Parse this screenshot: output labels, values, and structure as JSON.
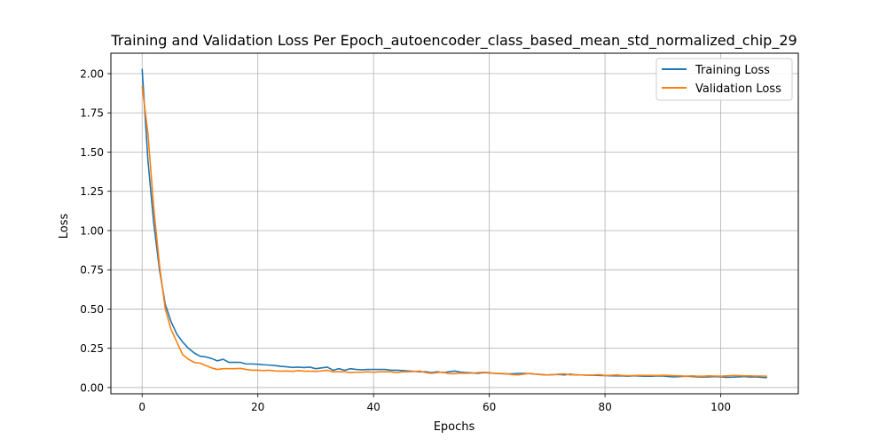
{
  "chart_data": {
    "type": "line",
    "title": "Training and Validation Loss Per Epoch_autoencoder_class_based_mean_std_normalized_chip_29",
    "xlabel": "Epochs",
    "ylabel": "Loss",
    "xlim": [
      -5.4,
      113.4
    ],
    "ylim": [
      -0.04,
      2.13
    ],
    "x_ticks": [
      0,
      20,
      40,
      60,
      80,
      100
    ],
    "y_ticks": [
      0.0,
      0.25,
      0.5,
      0.75,
      1.0,
      1.25,
      1.5,
      1.75,
      2.0
    ],
    "y_tick_labels": [
      "0.00",
      "0.25",
      "0.50",
      "0.75",
      "1.00",
      "1.25",
      "1.50",
      "1.75",
      "2.00"
    ],
    "grid": true,
    "legend_position": "upper right",
    "series": [
      {
        "name": "Training Loss",
        "color": "#1f77b4",
        "values": [
          2.03,
          1.45,
          1.05,
          0.75,
          0.53,
          0.42,
          0.34,
          0.29,
          0.25,
          0.22,
          0.2,
          0.195,
          0.185,
          0.17,
          0.18,
          0.16,
          0.16,
          0.16,
          0.15,
          0.15,
          0.148,
          0.145,
          0.143,
          0.14,
          0.135,
          0.132,
          0.128,
          0.13,
          0.127,
          0.13,
          0.12,
          0.125,
          0.13,
          0.11,
          0.12,
          0.11,
          0.12,
          0.115,
          0.113,
          0.115,
          0.115,
          0.115,
          0.115,
          0.11,
          0.11,
          0.108,
          0.105,
          0.103,
          0.1,
          0.1,
          0.095,
          0.1,
          0.095,
          0.1,
          0.105,
          0.098,
          0.095,
          0.093,
          0.09,
          0.095,
          0.093,
          0.09,
          0.088,
          0.087,
          0.087,
          0.09,
          0.09,
          0.088,
          0.085,
          0.082,
          0.08,
          0.082,
          0.083,
          0.08,
          0.085,
          0.08,
          0.08,
          0.078,
          0.078,
          0.077,
          0.076,
          0.075,
          0.074,
          0.074,
          0.072,
          0.075,
          0.073,
          0.072,
          0.072,
          0.073,
          0.074,
          0.07,
          0.068,
          0.07,
          0.072,
          0.07,
          0.068,
          0.067,
          0.068,
          0.07,
          0.068,
          0.065,
          0.066,
          0.068,
          0.07,
          0.067,
          0.068,
          0.065,
          0.063
        ]
      },
      {
        "name": "Validation Loss",
        "color": "#ff7f0e",
        "values": [
          1.92,
          1.62,
          1.15,
          0.78,
          0.5,
          0.37,
          0.29,
          0.21,
          0.18,
          0.16,
          0.155,
          0.14,
          0.125,
          0.115,
          0.12,
          0.12,
          0.12,
          0.122,
          0.115,
          0.11,
          0.11,
          0.108,
          0.11,
          0.105,
          0.104,
          0.105,
          0.103,
          0.108,
          0.104,
          0.104,
          0.103,
          0.105,
          0.11,
          0.1,
          0.1,
          0.1,
          0.095,
          0.097,
          0.097,
          0.1,
          0.097,
          0.1,
          0.1,
          0.1,
          0.095,
          0.1,
          0.1,
          0.102,
          0.105,
          0.095,
          0.09,
          0.095,
          0.098,
          0.088,
          0.088,
          0.092,
          0.09,
          0.092,
          0.095,
          0.097,
          0.095,
          0.09,
          0.09,
          0.088,
          0.082,
          0.08,
          0.085,
          0.09,
          0.085,
          0.083,
          0.08,
          0.082,
          0.085,
          0.087,
          0.08,
          0.082,
          0.08,
          0.078,
          0.08,
          0.082,
          0.077,
          0.078,
          0.08,
          0.077,
          0.075,
          0.076,
          0.078,
          0.077,
          0.077,
          0.076,
          0.078,
          0.077,
          0.075,
          0.074,
          0.072,
          0.074,
          0.072,
          0.072,
          0.074,
          0.073,
          0.072,
          0.074,
          0.076,
          0.076,
          0.074,
          0.074,
          0.073,
          0.073,
          0.072
        ]
      }
    ]
  }
}
